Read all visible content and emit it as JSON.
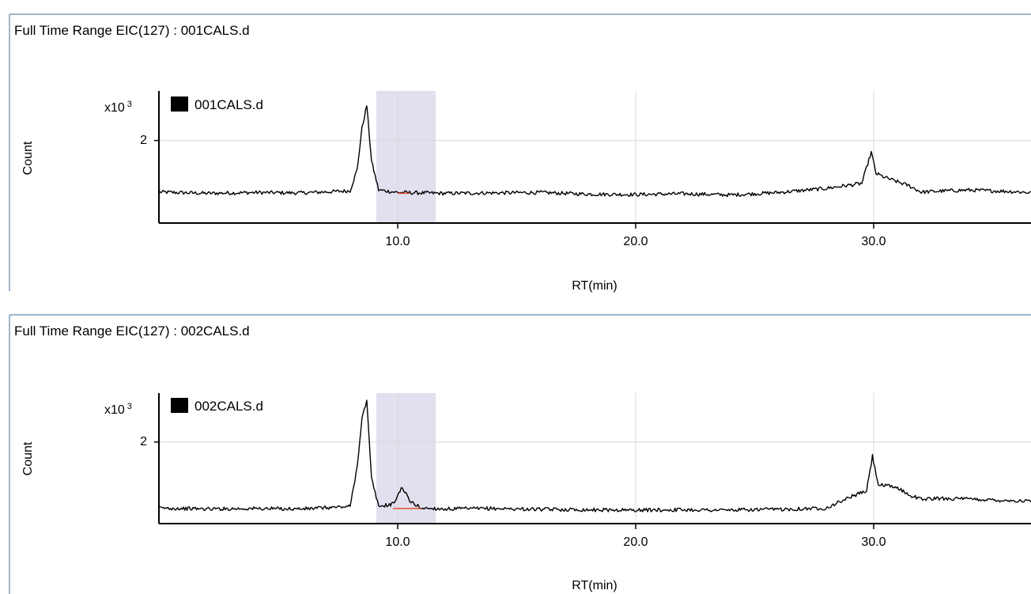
{
  "chart_data": [
    {
      "type": "line",
      "title": "Full Time Range EIC(127) : 001CALS.d",
      "xlabel": "RT(min)",
      "ylabel": "Count",
      "y_multiplier": "x10",
      "y_multiplier_exp": "3",
      "legend": "001CALS.d",
      "x_ticks": [
        "10.0",
        "20.0",
        "30.0"
      ],
      "y_ticks": [
        "2"
      ],
      "xlim": [
        0,
        37
      ],
      "ylim": [
        0,
        3.2
      ],
      "grid": true,
      "highlight_range": [
        9.1,
        11.6
      ],
      "series": [
        {
          "name": "001CALS.d",
          "color": "#000000",
          "x": [
            0.0,
            2.0,
            4.0,
            6.0,
            8.0,
            8.3,
            8.5,
            8.7,
            8.9,
            9.2,
            10.0,
            12.0,
            14.0,
            16.0,
            18.0,
            20.0,
            22.0,
            24.0,
            26.0,
            28.0,
            29.5,
            29.9,
            30.1,
            30.5,
            31.0,
            31.5,
            32.0,
            33.0,
            34.0,
            36.0,
            37.0
          ],
          "y": [
            0.75,
            0.72,
            0.74,
            0.73,
            0.78,
            1.3,
            2.3,
            2.85,
            1.5,
            0.8,
            0.74,
            0.72,
            0.73,
            0.74,
            0.7,
            0.69,
            0.71,
            0.68,
            0.74,
            0.84,
            0.96,
            1.72,
            1.2,
            1.1,
            1.0,
            0.9,
            0.75,
            0.78,
            0.8,
            0.76,
            0.72
          ]
        }
      ]
    },
    {
      "type": "line",
      "title": "Full Time Range EIC(127) : 002CALS.d",
      "xlabel": "RT(min)",
      "ylabel": "Count",
      "y_multiplier": "x10",
      "y_multiplier_exp": "3",
      "legend": "002CALS.d",
      "x_ticks": [
        "10.0",
        "20.0",
        "30.0"
      ],
      "y_ticks": [
        "2"
      ],
      "xlim": [
        0,
        37
      ],
      "ylim": [
        0,
        3.2
      ],
      "grid": true,
      "highlight_range": [
        9.1,
        11.6
      ],
      "series": [
        {
          "name": "002CALS.d",
          "color": "#000000",
          "x": [
            0.0,
            2.0,
            4.0,
            6.0,
            8.0,
            8.3,
            8.5,
            8.7,
            8.9,
            9.2,
            9.8,
            10.2,
            10.5,
            11.0,
            12.0,
            14.0,
            16.0,
            18.0,
            20.0,
            22.0,
            24.0,
            26.0,
            28.0,
            29.0,
            29.7,
            29.95,
            30.2,
            30.6,
            31.0,
            31.5,
            32.0,
            33.0,
            34.0,
            36.0,
            37.0
          ],
          "y": [
            0.38,
            0.36,
            0.37,
            0.36,
            0.42,
            1.4,
            2.6,
            3.0,
            1.1,
            0.42,
            0.48,
            0.9,
            0.55,
            0.38,
            0.36,
            0.37,
            0.35,
            0.34,
            0.33,
            0.34,
            0.33,
            0.35,
            0.38,
            0.65,
            0.8,
            1.65,
            0.95,
            0.92,
            0.88,
            0.7,
            0.6,
            0.62,
            0.6,
            0.56,
            0.54
          ]
        }
      ]
    }
  ]
}
